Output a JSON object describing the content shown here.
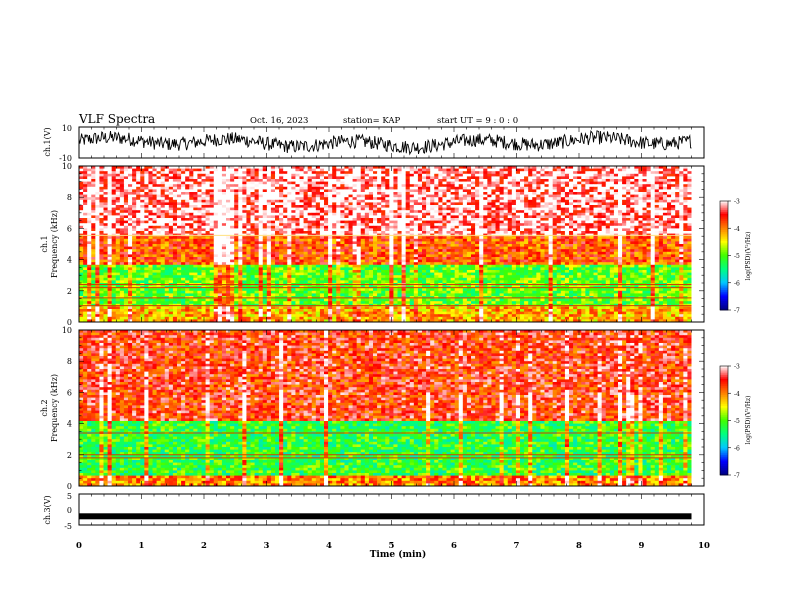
{
  "header": {
    "title": "VLF Spectra",
    "date": "Oct. 16, 2023",
    "station": "station= KAP",
    "start": "start  UT =   9 : 0  : 0"
  },
  "chart_data": [
    {
      "type": "line",
      "name": "ch1-waveform",
      "ylabel": "ch.1(V)",
      "ylim": [
        -10,
        10
      ],
      "yticks": [
        10,
        -10
      ],
      "xlim": [
        0,
        10
      ],
      "x_end": 9.8,
      "description_values": "noisy waveform mostly between -8 and +8 V"
    },
    {
      "type": "heatmap",
      "name": "ch1-spectrogram",
      "ylabel": "ch.1",
      "ylabel2": "Frequency (kHz)",
      "ylim": [
        0,
        10
      ],
      "yticks": [
        0,
        2,
        4,
        6,
        8,
        10
      ],
      "xlim": [
        0,
        10
      ],
      "x_end": 9.8,
      "bands": [
        {
          "from": 0,
          "to": 1.0,
          "level": -4.2
        },
        {
          "from": 1.0,
          "to": 3.7,
          "level": -5.0
        },
        {
          "from": 3.7,
          "to": 5.5,
          "level": -3.8
        },
        {
          "from": 5.5,
          "to": 10,
          "level": -3.2
        }
      ],
      "lines_khz": [
        5.55,
        2.4,
        2.2,
        1.55,
        1.05
      ],
      "colorbar": {
        "label": "log(PSD)(V²/Hz)",
        "range": [
          -7,
          -3
        ],
        "ticks": [
          "-3",
          "-4",
          "-5",
          "-6",
          "-7"
        ]
      }
    },
    {
      "type": "heatmap",
      "name": "ch2-spectrogram",
      "ylabel": "ch.2",
      "ylabel2": "Frequency (kHz)",
      "ylim": [
        0,
        10
      ],
      "yticks": [
        0,
        2,
        4,
        6,
        8,
        10
      ],
      "xlim": [
        0,
        10
      ],
      "x_end": 9.8,
      "bands": [
        {
          "from": 0,
          "to": 0.7,
          "level": -4.0
        },
        {
          "from": 0.7,
          "to": 4.2,
          "level": -5.2
        },
        {
          "from": 4.2,
          "to": 10,
          "level": -3.6
        }
      ],
      "lines_khz": [
        3.4,
        2.0,
        1.8
      ],
      "colorbar": {
        "label": "log(PSD)(V²/Hz)",
        "range": [
          -7,
          -3
        ],
        "ticks": [
          "-3",
          "-4",
          "-5",
          "-6",
          "-7"
        ]
      }
    },
    {
      "type": "line",
      "name": "ch3-waveform",
      "ylabel": "ch.3(V)",
      "ylim": [
        -5,
        5
      ],
      "yticks": [
        5,
        0,
        -5
      ],
      "xlim": [
        0,
        10
      ],
      "x_end": 9.8,
      "level": -2.2,
      "xlabel": "Time (min)",
      "xticks": [
        "0",
        "1",
        "2",
        "3",
        "4",
        "5",
        "6",
        "7",
        "8",
        "9",
        "10"
      ]
    }
  ],
  "colors": {
    "colormap": [
      "#000080",
      "#0000ff",
      "#00c8ff",
      "#00ff80",
      "#40ff00",
      "#ffff00",
      "#ff8000",
      "#ff0000",
      "#ffffff"
    ]
  }
}
